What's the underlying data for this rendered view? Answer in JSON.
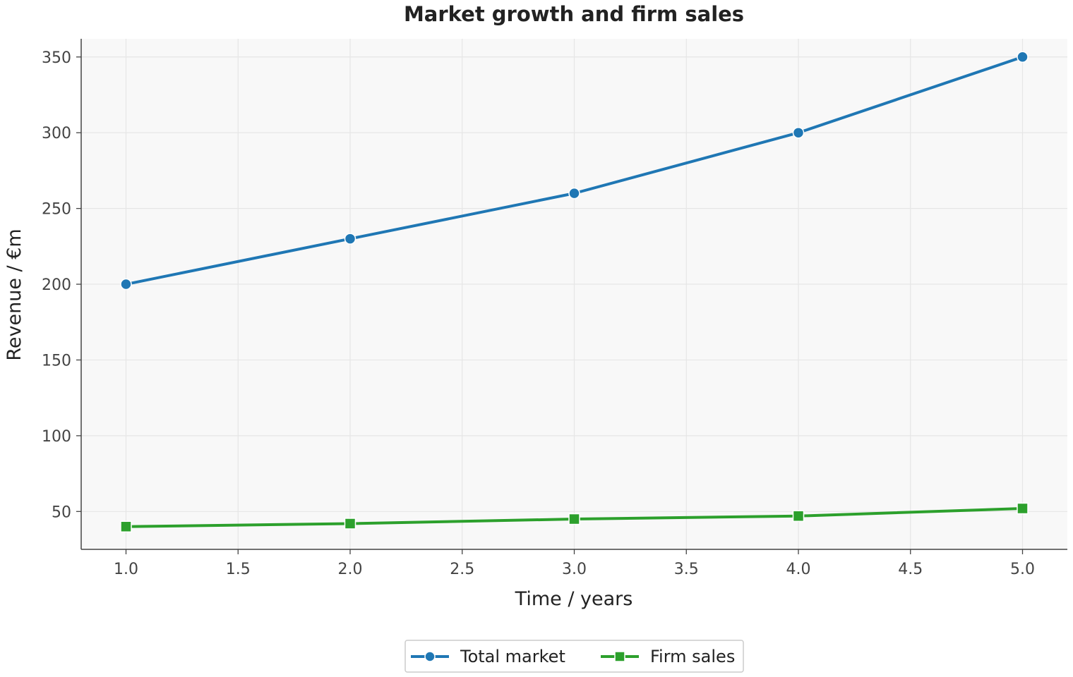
{
  "chart_data": {
    "type": "line",
    "title": "Market growth and firm sales",
    "xlabel": "Time / years",
    "ylabel": "Revenue / €m",
    "xlim": [
      0.8,
      5.2
    ],
    "ylim": [
      25,
      362
    ],
    "x_ticks": [
      "1.0",
      "1.5",
      "2.0",
      "2.5",
      "3.0",
      "3.5",
      "4.0",
      "4.5",
      "5.0"
    ],
    "y_ticks": [
      "50",
      "100",
      "150",
      "200",
      "250",
      "300",
      "350"
    ],
    "x": [
      1,
      2,
      3,
      4,
      5
    ],
    "series": [
      {
        "name": "Total market",
        "values": [
          200,
          230,
          260,
          300,
          350
        ],
        "color": "#1f77b4",
        "marker": "circle"
      },
      {
        "name": "Firm sales",
        "values": [
          40,
          42,
          45,
          47,
          52
        ],
        "color": "#2ca02c",
        "marker": "square"
      }
    ],
    "grid": true,
    "legend_position": "bottom-center",
    "plot_background": "#f8f8f8"
  }
}
